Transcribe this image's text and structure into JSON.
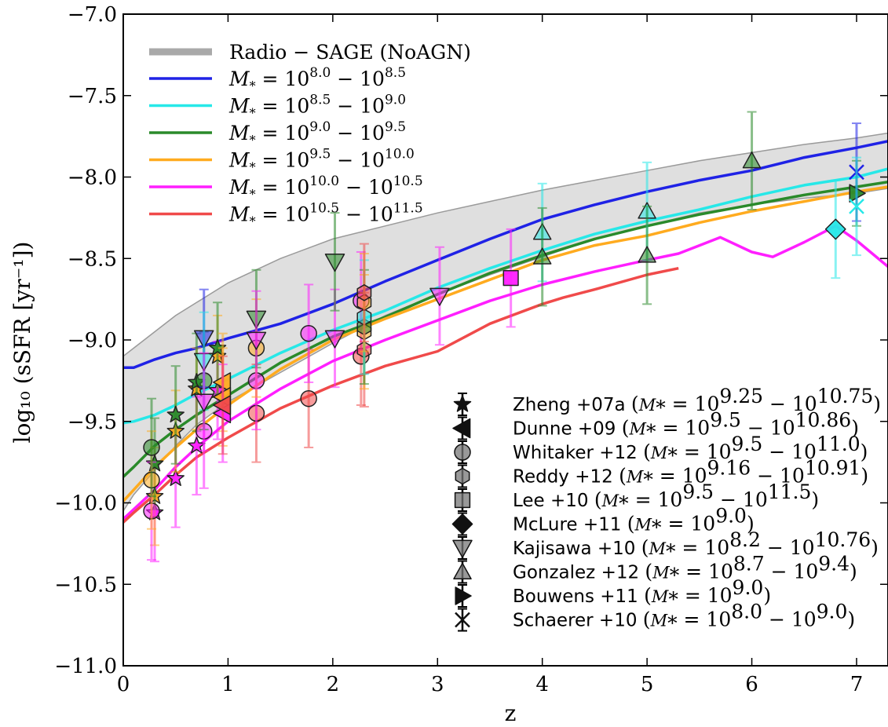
{
  "chart_data": {
    "type": "scatter",
    "xlabel": "z",
    "ylabel": "log₁₀ (sSFR [yr⁻¹])",
    "xlim": [
      0,
      7.3
    ],
    "ylim": [
      -11.0,
      -7.0
    ],
    "x_ticks": [
      "0",
      "1",
      "2",
      "3",
      "4",
      "5",
      "6",
      "7"
    ],
    "y_ticks": [
      "−11.0",
      "−10.5",
      "−10.0",
      "−9.5",
      "−9.0",
      "−8.5",
      "−8.0",
      "−7.5",
      "−7.0"
    ],
    "band": {
      "name": "Radio − SAGE (NoAGN)",
      "color": "#a9a9a9",
      "x": [
        0,
        0.1,
        0.3,
        0.5,
        0.7,
        1.0,
        1.5,
        2.0,
        2.5,
        3.0,
        3.5,
        4.0,
        4.5,
        5.0,
        5.5,
        6.0,
        6.5,
        7.0,
        7.3
      ],
      "upper": [
        -9.1,
        -9.05,
        -8.95,
        -8.85,
        -8.77,
        -8.65,
        -8.5,
        -8.38,
        -8.3,
        -8.22,
        -8.15,
        -8.08,
        -8.02,
        -7.96,
        -7.9,
        -7.85,
        -7.8,
        -7.76,
        -7.73
      ],
      "lower": [
        -10.05,
        -9.95,
        -9.8,
        -9.65,
        -9.52,
        -9.38,
        -9.2,
        -9.02,
        -8.85,
        -8.72,
        -8.6,
        -8.49,
        -8.38,
        -8.3,
        -8.22,
        -8.17,
        -8.13,
        -8.1,
        -8.07
      ]
    },
    "series": [
      {
        "name": "M₊ = 10^8.0 − 10^8.5",
        "label_main": "M",
        "label_sub": "*",
        "label_base": " = 10",
        "label_exp1": "8.0",
        "label_mid": " − 10",
        "label_exp2": "8.5",
        "color": "#1f22e6",
        "x": [
          0,
          0.1,
          0.3,
          0.5,
          0.7,
          1.0,
          1.5,
          2.0,
          2.5,
          3.0,
          3.5,
          4.0,
          4.5,
          5.0,
          5.5,
          6.0,
          6.5,
          7.0,
          7.3
        ],
        "y": [
          -9.17,
          -9.17,
          -9.12,
          -9.08,
          -9.05,
          -8.99,
          -8.9,
          -8.78,
          -8.64,
          -8.51,
          -8.38,
          -8.26,
          -8.17,
          -8.09,
          -8.02,
          -7.96,
          -7.88,
          -7.82,
          -7.78
        ]
      },
      {
        "name": "M₊ = 10^8.5 − 10^9.0",
        "label_main": "M",
        "label_sub": "*",
        "label_base": " = 10",
        "label_exp1": "8.5",
        "label_mid": " − 10",
        "label_exp2": "9.0",
        "color": "#27e8e8",
        "x": [
          0,
          0.1,
          0.3,
          0.5,
          0.7,
          1.0,
          1.5,
          2.0,
          2.5,
          3.0,
          3.5,
          4.0,
          4.5,
          5.0,
          5.5,
          6.0,
          6.5,
          7.0,
          7.3
        ],
        "y": [
          -9.51,
          -9.5,
          -9.46,
          -9.4,
          -9.33,
          -9.24,
          -9.08,
          -8.94,
          -8.82,
          -8.68,
          -8.56,
          -8.45,
          -8.35,
          -8.27,
          -8.2,
          -8.12,
          -8.05,
          -8.0,
          -7.95
        ]
      },
      {
        "name": "M₊ = 10^9.0 − 10^9.5",
        "label_main": "M",
        "label_sub": "*",
        "label_base": " = 10",
        "label_exp1": "9.0",
        "label_mid": " − 10",
        "label_exp2": "9.5",
        "color": "#2a8a2a",
        "x": [
          0,
          0.1,
          0.3,
          0.5,
          0.7,
          1.0,
          1.5,
          2.0,
          2.5,
          3.0,
          3.5,
          4.0,
          4.5,
          5.0,
          5.5,
          6.0,
          6.5,
          7.0,
          7.3
        ],
        "y": [
          -9.84,
          -9.78,
          -9.65,
          -9.55,
          -9.46,
          -9.34,
          -9.14,
          -8.98,
          -8.86,
          -8.72,
          -8.59,
          -8.48,
          -8.38,
          -8.3,
          -8.23,
          -8.17,
          -8.11,
          -8.06,
          -8.03
        ]
      },
      {
        "name": "M₊ = 10^9.5 − 10^10.0",
        "label_main": "M",
        "label_sub": "*",
        "label_base": " = 10",
        "label_exp1": "9.5",
        "label_mid": " − 10",
        "label_exp2": "10.0",
        "color": "#ffab1f",
        "x": [
          0,
          0.1,
          0.3,
          0.5,
          0.7,
          1.0,
          1.5,
          2.0,
          2.5,
          3.0,
          3.5,
          4.0,
          4.5,
          5.0,
          5.5,
          6.0,
          6.5,
          7.0,
          7.3
        ],
        "y": [
          -9.99,
          -9.92,
          -9.78,
          -9.66,
          -9.55,
          -9.4,
          -9.18,
          -9.0,
          -8.87,
          -8.75,
          -8.63,
          -8.51,
          -8.42,
          -8.36,
          -8.28,
          -8.21,
          -8.15,
          -8.09,
          -8.06
        ]
      },
      {
        "name": "M₊ = 10^10.0 − 10^10.5",
        "label_main": "M",
        "label_sub": "*",
        "label_base": " = 10",
        "label_exp1": "10.0",
        "label_mid": " − 10",
        "label_exp2": "10.5",
        "color": "#ff1fff",
        "x": [
          0,
          0.1,
          0.3,
          0.5,
          0.7,
          1.0,
          1.5,
          2.0,
          2.5,
          3.0,
          3.5,
          4.0,
          4.5,
          5.0,
          5.3,
          5.7,
          6.0,
          6.2,
          6.5,
          6.8,
          7.0,
          7.3
        ],
        "y": [
          -10.1,
          -10.04,
          -9.92,
          -9.78,
          -9.66,
          -9.5,
          -9.3,
          -9.13,
          -9.0,
          -8.88,
          -8.76,
          -8.66,
          -8.58,
          -8.51,
          -8.47,
          -8.37,
          -8.46,
          -8.49,
          -8.4,
          -8.3,
          -8.39,
          -8.55
        ]
      },
      {
        "name": "M₊ = 10^10.5 − 10^11.5",
        "label_main": "M",
        "label_sub": "*",
        "label_base": " = 10",
        "label_exp1": "10.5",
        "label_mid": " − 10",
        "label_exp2": "11.5",
        "color": "#f04a4a",
        "x": [
          0,
          0.1,
          0.3,
          0.5,
          0.7,
          1.0,
          1.5,
          2.0,
          2.5,
          3.0,
          3.5,
          4.0,
          4.2,
          4.5,
          5.0,
          5.3
        ],
        "y": [
          -10.12,
          -10.06,
          -9.95,
          -9.83,
          -9.72,
          -9.6,
          -9.42,
          -9.28,
          -9.16,
          -9.07,
          -8.9,
          -8.78,
          -8.74,
          -8.69,
          -8.6,
          -8.56
        ]
      }
    ],
    "observations": [
      {
        "name": "Zheng +07a",
        "marker": "star",
        "mass_label": "M",
        "mass_exp1": "9.25",
        "mass_exp2": "10.75"
      },
      {
        "name": "Dunne +09",
        "marker": "tri-left",
        "mass_label": "M",
        "mass_exp1": "9.5",
        "mass_exp2": "10.86"
      },
      {
        "name": "Whitaker +12",
        "marker": "circle",
        "mass_label": "M",
        "mass_exp1": "9.5",
        "mass_exp2": "11.0"
      },
      {
        "name": "Reddy +12",
        "marker": "hexagon",
        "mass_label": "M",
        "mass_exp1": "9.16",
        "mass_exp2": "10.91"
      },
      {
        "name": "Lee +10",
        "marker": "square",
        "mass_label": "M",
        "mass_exp1": "9.5",
        "mass_exp2": "11.5"
      },
      {
        "name": "McLure +11",
        "marker": "diamond",
        "mass_label": "M",
        "mass_exp1": "9.0",
        "mass_exp2": ""
      },
      {
        "name": "Kajisawa +10",
        "marker": "tri-down",
        "mass_label": "M",
        "mass_exp1": "8.2",
        "mass_exp2": "10.76"
      },
      {
        "name": "Gonzalez +12",
        "marker": "tri-up",
        "mass_label": "M",
        "mass_exp1": "8.7",
        "mass_exp2": "9.4"
      },
      {
        "name": "Bouwens +11",
        "marker": "tri-right",
        "mass_label": "M",
        "mass_exp1": "9.0",
        "mass_exp2": ""
      },
      {
        "name": "Schaerer +10",
        "marker": "x",
        "mass_label": "M",
        "mass_exp1": "8.0",
        "mass_exp2": "9.0"
      }
    ],
    "points": [
      {
        "set": "Zheng +07a",
        "marker": "star",
        "color": "#ff1fff",
        "x": 0.3,
        "y": -10.06,
        "err": 0.3
      },
      {
        "set": "Zheng +07a",
        "marker": "star",
        "color": "#ffab1f",
        "x": 0.3,
        "y": -9.96,
        "err": 0.3
      },
      {
        "set": "Zheng +07a",
        "marker": "star",
        "color": "#2a8a2a",
        "x": 0.3,
        "y": -9.76,
        "err": 0.28
      },
      {
        "set": "Zheng +07a",
        "marker": "star",
        "color": "#ff1fff",
        "x": 0.5,
        "y": -9.85,
        "err": 0.3
      },
      {
        "set": "Zheng +07a",
        "marker": "star",
        "color": "#ffab1f",
        "x": 0.5,
        "y": -9.56,
        "err": 0.25
      },
      {
        "set": "Zheng +07a",
        "marker": "star",
        "color": "#2a8a2a",
        "x": 0.5,
        "y": -9.46,
        "err": 0.3
      },
      {
        "set": "Zheng +07a",
        "marker": "star",
        "color": "#ff1fff",
        "x": 0.7,
        "y": -9.65,
        "err": 0.3
      },
      {
        "set": "Zheng +07a",
        "marker": "star",
        "color": "#ffab1f",
        "x": 0.7,
        "y": -9.3,
        "err": 0.25
      },
      {
        "set": "Zheng +07a",
        "marker": "star",
        "color": "#2a8a2a",
        "x": 0.7,
        "y": -9.26,
        "err": 0.3
      },
      {
        "set": "Zheng +07a",
        "marker": "star",
        "color": "#ff1fff",
        "x": 0.9,
        "y": -9.31,
        "err": 0.3
      },
      {
        "set": "Zheng +07a",
        "marker": "star",
        "color": "#ffab1f",
        "x": 0.9,
        "y": -9.1,
        "err": 0.25
      },
      {
        "set": "Zheng +07a",
        "marker": "star",
        "color": "#2a8a2a",
        "x": 0.9,
        "y": -9.05,
        "err": 0.28
      },
      {
        "set": "Whitaker +12",
        "marker": "circle",
        "color": "#ff1fff",
        "x": 0.27,
        "y": -10.05,
        "err": 0.3
      },
      {
        "set": "Whitaker +12",
        "marker": "circle",
        "color": "#ffab1f",
        "x": 0.27,
        "y": -9.86,
        "err": 0.3
      },
      {
        "set": "Whitaker +12",
        "marker": "circle",
        "color": "#2a8a2a",
        "x": 0.27,
        "y": -9.66,
        "err": 0.3
      },
      {
        "set": "Whitaker +12",
        "marker": "circle",
        "color": "#ff1fff",
        "x": 0.77,
        "y": -9.56,
        "err": 0.35
      },
      {
        "set": "Whitaker +12",
        "marker": "circle",
        "color": "#2a8a2a",
        "x": 0.77,
        "y": -9.25,
        "err": 0.3
      },
      {
        "set": "Whitaker +12",
        "marker": "circle",
        "color": "#f04a4a",
        "x": 1.27,
        "y": -9.45,
        "err": 0.3
      },
      {
        "set": "Whitaker +12",
        "marker": "circle",
        "color": "#ff1fff",
        "x": 1.27,
        "y": -9.25,
        "err": 0.3
      },
      {
        "set": "Whitaker +12",
        "marker": "circle",
        "color": "#ffab1f",
        "x": 1.27,
        "y": -9.05,
        "err": 0.3
      },
      {
        "set": "Whitaker +12",
        "marker": "circle",
        "color": "#f04a4a",
        "x": 1.77,
        "y": -9.36,
        "err": 0.3
      },
      {
        "set": "Whitaker +12",
        "marker": "circle",
        "color": "#ff1fff",
        "x": 1.77,
        "y": -8.96,
        "err": 0.3
      },
      {
        "set": "Whitaker +12",
        "marker": "circle",
        "color": "#f04a4a",
        "x": 2.27,
        "y": -9.1,
        "err": 0.3
      },
      {
        "set": "Whitaker +12",
        "marker": "circle",
        "color": "#ff1fff",
        "x": 2.27,
        "y": -8.76,
        "err": 0.3
      },
      {
        "set": "Reddy +12",
        "marker": "hexagon",
        "color": "#f04a4a",
        "x": 2.3,
        "y": -9.06,
        "err": 0.35
      },
      {
        "set": "Reddy +12",
        "marker": "hexagon",
        "color": "#ffab1f",
        "x": 2.3,
        "y": -8.95,
        "err": 0.35
      },
      {
        "set": "Reddy +12",
        "marker": "hexagon",
        "color": "#2a8a2a",
        "x": 2.3,
        "y": -8.92,
        "err": 0.35
      },
      {
        "set": "Reddy +12",
        "marker": "hexagon",
        "color": "#27e8e8",
        "x": 2.3,
        "y": -8.86,
        "err": 0.35
      },
      {
        "set": "Reddy +12",
        "marker": "hexagon",
        "color": "#ffab1f",
        "x": 2.3,
        "y": -8.77,
        "err": 0.3
      },
      {
        "set": "Reddy +12",
        "marker": "hexagon",
        "color": "#f04a4a",
        "x": 2.3,
        "y": -8.71,
        "err": 0.3
      },
      {
        "set": "Dunne +09",
        "marker": "tri-left",
        "color": "#ffab1f",
        "x": 0.95,
        "y": -9.26,
        "err": 0.3
      },
      {
        "set": "Dunne +09",
        "marker": "tri-left",
        "color": "#ffab1f",
        "x": 0.95,
        "y": -9.35,
        "err": 0.3
      },
      {
        "set": "Dunne +09",
        "marker": "tri-left",
        "color": "#ff1fff",
        "x": 0.95,
        "y": -9.45,
        "err": 0.3
      },
      {
        "set": "Dunne +09",
        "marker": "tri-left",
        "color": "#f04a4a",
        "x": 0.95,
        "y": -9.4,
        "err": 0.3
      },
      {
        "set": "Kajisawa +10",
        "marker": "tri-down",
        "color": "#1f22e6",
        "x": 0.77,
        "y": -8.99,
        "err": 0.3
      },
      {
        "set": "Kajisawa +10",
        "marker": "tri-down",
        "color": "#27e8e8",
        "x": 0.77,
        "y": -9.13,
        "err": 0.3
      },
      {
        "set": "Kajisawa +10",
        "marker": "tri-down",
        "color": "#ff1fff",
        "x": 0.77,
        "y": -9.38,
        "err": 0.3
      },
      {
        "set": "Kajisawa +10",
        "marker": "tri-down",
        "color": "#2a8a2a",
        "x": 1.27,
        "y": -8.87,
        "err": 0.3
      },
      {
        "set": "Kajisawa +10",
        "marker": "tri-down",
        "color": "#ff1fff",
        "x": 1.27,
        "y": -9.0,
        "err": 0.3
      },
      {
        "set": "Kajisawa +10",
        "marker": "tri-down",
        "color": "#ff1fff",
        "x": 2.02,
        "y": -8.99,
        "err": 0.3
      },
      {
        "set": "Kajisawa +10",
        "marker": "tri-down",
        "color": "#2a8a2a",
        "x": 2.02,
        "y": -8.52,
        "err": 0.3
      },
      {
        "set": "Kajisawa +10",
        "marker": "tri-down",
        "color": "#ff1fff",
        "x": 3.02,
        "y": -8.73,
        "err": 0.3
      },
      {
        "set": "Lee +10",
        "marker": "square",
        "color": "#ff1fff",
        "x": 3.7,
        "y": -8.62,
        "err": 0.3
      },
      {
        "set": "Gonzalez +12",
        "marker": "tri-up",
        "color": "#27e8e8",
        "x": 4.0,
        "y": -8.34,
        "err": 0.3
      },
      {
        "set": "Gonzalez +12",
        "marker": "tri-up",
        "color": "#2a8a2a",
        "x": 4.0,
        "y": -8.49,
        "err": 0.3
      },
      {
        "set": "Gonzalez +12",
        "marker": "tri-up",
        "color": "#27e8e8",
        "x": 5.0,
        "y": -8.21,
        "err": 0.3
      },
      {
        "set": "Gonzalez +12",
        "marker": "tri-up",
        "color": "#2a8a2a",
        "x": 5.0,
        "y": -8.48,
        "err": 0.3
      },
      {
        "set": "Gonzalez +12",
        "marker": "tri-up",
        "color": "#2a8a2a",
        "x": 6.0,
        "y": -7.9,
        "err": 0.3
      },
      {
        "set": "McLure +11",
        "marker": "diamond",
        "color": "#27e8e8",
        "x": 6.8,
        "y": -8.32,
        "err": 0.3
      },
      {
        "set": "Bouwens +11",
        "marker": "tri-right",
        "color": "#2a8a2a",
        "x": 7.0,
        "y": -8.1,
        "err": 0.2
      },
      {
        "set": "Schaerer +10",
        "marker": "x",
        "color": "#1f22e6",
        "x": 7.0,
        "y": -7.97,
        "err": 0.3
      },
      {
        "set": "Schaerer +10",
        "marker": "x",
        "color": "#27e8e8",
        "x": 7.0,
        "y": -8.18,
        "err": 0.3
      }
    ]
  }
}
